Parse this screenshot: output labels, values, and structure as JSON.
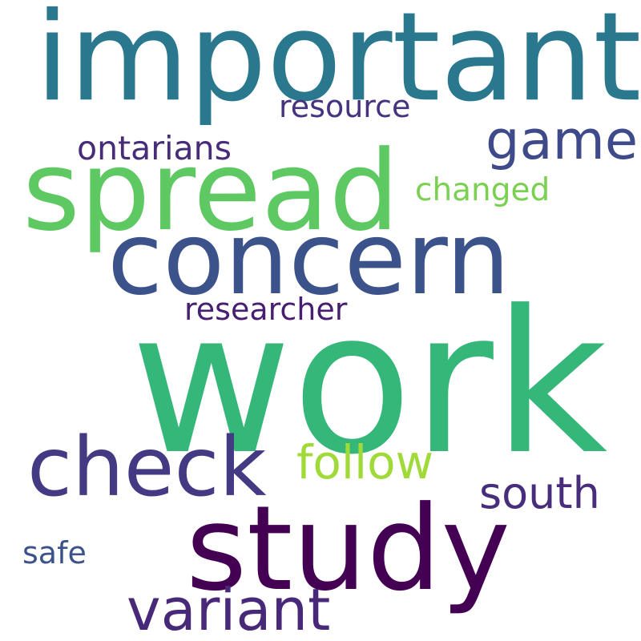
{
  "words": [
    {
      "text": "work",
      "color": "#35b779"
    },
    {
      "text": "important",
      "color": "#2a788e"
    },
    {
      "text": "spread",
      "color": "#5ec962"
    },
    {
      "text": "concern",
      "color": "#3b528b"
    },
    {
      "text": "study",
      "color": "#440154"
    },
    {
      "text": "check",
      "color": "#443983"
    },
    {
      "text": "variant",
      "color": "#482878"
    },
    {
      "text": "game",
      "color": "#3e4a89"
    },
    {
      "text": "follow",
      "color": "#a0da39"
    },
    {
      "text": "south",
      "color": "#472d7b"
    },
    {
      "text": "ontarians",
      "color": "#472c7a"
    },
    {
      "text": "resource",
      "color": "#46327e"
    },
    {
      "text": "changed",
      "color": "#7ad151"
    },
    {
      "text": "researcher",
      "color": "#481f70"
    },
    {
      "text": "safe",
      "color": "#3b528b"
    }
  ]
}
